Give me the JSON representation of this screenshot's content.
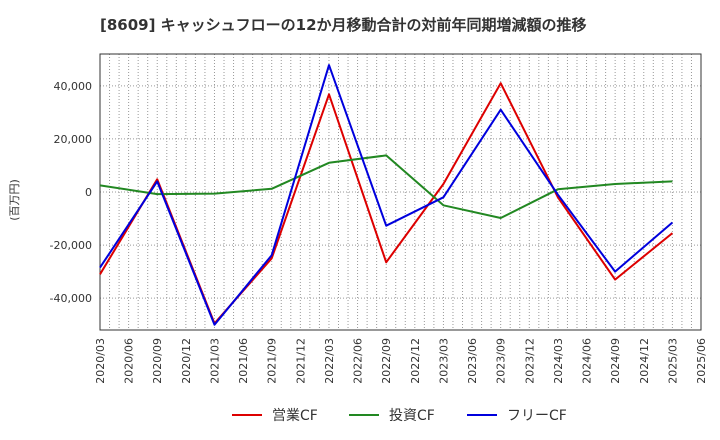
{
  "chart_data": {
    "type": "line",
    "title": "[8609]  キャッシュフローの12か月移動合計の対前年同期増減額の推移",
    "ylabel": "(百万円)",
    "xlabel": "",
    "ylim": [
      -52000,
      52000
    ],
    "yticks": [
      40000,
      20000,
      0,
      -20000,
      -40000
    ],
    "ytick_labels": [
      "40,000",
      "20,000",
      "0",
      "-20,000",
      "-40,000"
    ],
    "x_ticks": [
      "2020/03",
      "2020/06",
      "2020/09",
      "2020/12",
      "2021/03",
      "2021/06",
      "2021/09",
      "2021/12",
      "2022/03",
      "2022/06",
      "2022/09",
      "2022/12",
      "2023/03",
      "2023/06",
      "2023/09",
      "2023/12",
      "2024/03",
      "2024/06",
      "2024/09",
      "2024/12",
      "2025/03",
      "2025/06"
    ],
    "grid": true,
    "legend_position": "bottom",
    "series": [
      {
        "name": "営業CF",
        "color": "#dd0000",
        "x": [
          "2020/03",
          "2020/09",
          "2021/03",
          "2021/09",
          "2022/03",
          "2022/09",
          "2023/03",
          "2023/09",
          "2024/03",
          "2024/09",
          "2025/03"
        ],
        "values": [
          -31000,
          4800,
          -49500,
          -25000,
          36800,
          -26500,
          3000,
          41000,
          -2000,
          -33000,
          -15500
        ]
      },
      {
        "name": "投資CF",
        "color": "#228822",
        "x": [
          "2020/03",
          "2020/09",
          "2021/03",
          "2021/09",
          "2022/03",
          "2022/09",
          "2023/03",
          "2023/09",
          "2024/03",
          "2024/09",
          "2025/03"
        ],
        "values": [
          2500,
          -800,
          -600,
          1200,
          11000,
          13800,
          -5000,
          -9800,
          1000,
          3000,
          4000
        ]
      },
      {
        "name": "フリーCF",
        "color": "#0000dd",
        "x": [
          "2020/03",
          "2020/09",
          "2021/03",
          "2021/09",
          "2022/03",
          "2022/09",
          "2023/03",
          "2023/09",
          "2024/03",
          "2024/09",
          "2025/03"
        ],
        "values": [
          -28500,
          4000,
          -50000,
          -23800,
          47800,
          -12700,
          -2000,
          31000,
          -1000,
          -30000,
          -11500
        ]
      }
    ]
  }
}
